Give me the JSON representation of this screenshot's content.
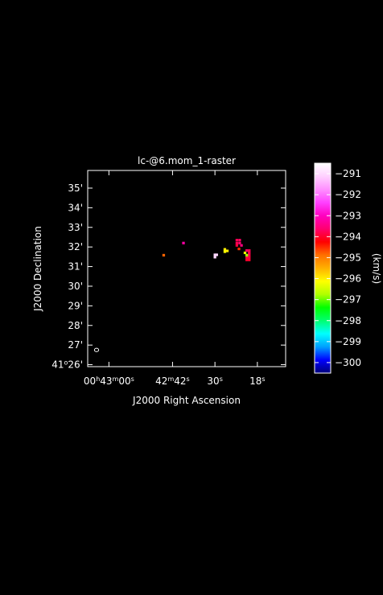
{
  "chart_data": {
    "type": "heatmap",
    "title": "lc-@6.mom_1-raster",
    "xlabel": "J2000 Right Ascension",
    "ylabel": "J2000 Declination",
    "colorbar_label": "(km/s)",
    "xlim_seconds_ra": [
      10,
      66
    ],
    "ylim_dec_arcmin": [
      25.9,
      35.9
    ],
    "x_ticks": [
      {
        "seconds": 60,
        "h": "00",
        "m": "43",
        "s": "00",
        "kind": "hms"
      },
      {
        "seconds": 42,
        "m": "42",
        "s": "42",
        "kind": "ms"
      },
      {
        "seconds": 30,
        "s": "30",
        "kind": "s"
      },
      {
        "seconds": 18,
        "s": "18",
        "kind": "s"
      }
    ],
    "y_ticks": [
      {
        "arcmin": 26,
        "deg": "41",
        "min": "26",
        "full": true
      },
      {
        "arcmin": 27,
        "min": "27"
      },
      {
        "arcmin": 28,
        "min": "28"
      },
      {
        "arcmin": 29,
        "min": "29"
      },
      {
        "arcmin": 30,
        "min": "30"
      },
      {
        "arcmin": 31,
        "min": "31"
      },
      {
        "arcmin": 32,
        "min": "32"
      },
      {
        "arcmin": 33,
        "min": "33"
      },
      {
        "arcmin": 34,
        "min": "34"
      },
      {
        "arcmin": 35,
        "min": "35"
      }
    ],
    "colorbar": {
      "vmin": -300.5,
      "vmax": -290.5,
      "ticks": [
        -291,
        -292,
        -293,
        -294,
        -295,
        -296,
        -297,
        -298,
        -299,
        -300
      ],
      "stops": [
        "#00007a",
        "#0000ff",
        "#00a0ff",
        "#00ffff",
        "#00ff70",
        "#00ff00",
        "#b0ff00",
        "#ffff00",
        "#ffb000",
        "#ff7000",
        "#ff0000",
        "#ff0070",
        "#ff00c0",
        "#ff40ff",
        "#ff90ff",
        "#ffd0ff",
        "#ffffff"
      ]
    },
    "pixels": [
      {
        "ra_s": 44.5,
        "dec": 31.58,
        "v": -294.8
      },
      {
        "ra_s": 38.9,
        "dec": 32.2,
        "v": -293.2
      },
      {
        "ra_s": 30.0,
        "dec": 31.6,
        "v": -291.0
      },
      {
        "ra_s": 29.5,
        "dec": 31.6,
        "v": -291.0
      },
      {
        "ra_s": 30.0,
        "dec": 31.48,
        "v": -291.0
      },
      {
        "ra_s": 27.2,
        "dec": 31.88,
        "v": -296.0
      },
      {
        "ra_s": 27.2,
        "dec": 31.76,
        "v": -296.2
      },
      {
        "ra_s": 26.5,
        "dec": 31.8,
        "v": -296.0
      },
      {
        "ra_s": 23.8,
        "dec": 32.35,
        "v": -293.8
      },
      {
        "ra_s": 23.0,
        "dec": 32.35,
        "v": -293.7
      },
      {
        "ra_s": 23.8,
        "dec": 32.2,
        "v": -293.8
      },
      {
        "ra_s": 23.0,
        "dec": 32.2,
        "v": -293.6
      },
      {
        "ra_s": 22.5,
        "dec": 32.08,
        "v": -293.5
      },
      {
        "ra_s": 23.8,
        "dec": 32.08,
        "v": -293.9
      },
      {
        "ra_s": 23.2,
        "dec": 31.9,
        "v": -294.5
      },
      {
        "ra_s": 21.5,
        "dec": 31.7,
        "v": -296.3
      },
      {
        "ra_s": 21.0,
        "dec": 31.82,
        "v": -293.7
      },
      {
        "ra_s": 20.3,
        "dec": 31.82,
        "v": -293.8
      },
      {
        "ra_s": 20.3,
        "dec": 31.7,
        "v": -293.8
      },
      {
        "ra_s": 20.3,
        "dec": 31.58,
        "v": -293.9
      },
      {
        "ra_s": 20.3,
        "dec": 31.46,
        "v": -293.9
      },
      {
        "ra_s": 20.3,
        "dec": 31.34,
        "v": -294.0
      },
      {
        "ra_s": 21.0,
        "dec": 31.46,
        "v": -293.9
      },
      {
        "ra_s": 21.0,
        "dec": 31.58,
        "v": -296.8
      },
      {
        "ra_s": 21.0,
        "dec": 31.34,
        "v": -294.0
      }
    ],
    "beam": {
      "ra_s": 63.5,
      "dec": 26.75
    }
  }
}
